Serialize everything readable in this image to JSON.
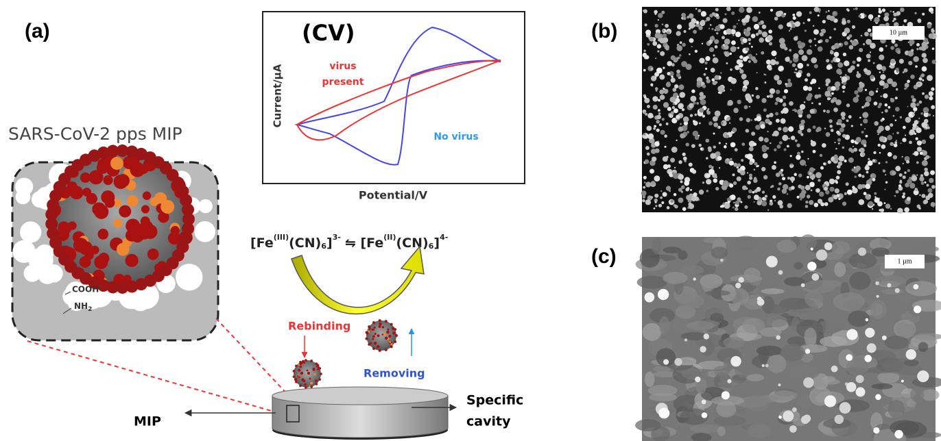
{
  "panel_a": {
    "label": "(a)",
    "cv": {
      "title": "(CV)",
      "y_label": "Current/µA",
      "x_label": "Potential/V",
      "virus_present": [
        "virus",
        "present"
      ],
      "no_virus": "No virus"
    },
    "mip_title": "SARS-CoV-2 pps MIP",
    "groups": {
      "cooh": "COOH",
      "nh": "NH",
      "nh_sub": "2"
    },
    "formula": [
      "[Fe",
      "(III)",
      "(CN)",
      "6",
      "]",
      "3-",
      "⇋ [Fe",
      "(II)",
      "(CN)",
      "6",
      "]",
      "4-"
    ],
    "rebinding": "Rebinding",
    "removing": "Removing",
    "mip": "MIP",
    "specific_cavity": [
      "Specific",
      "cavity"
    ]
  },
  "panel_b": {
    "label": "(b)",
    "scale_bar": "10 µm"
  },
  "panel_c": {
    "label": "(c)",
    "scale_bar": "1 µm"
  }
}
